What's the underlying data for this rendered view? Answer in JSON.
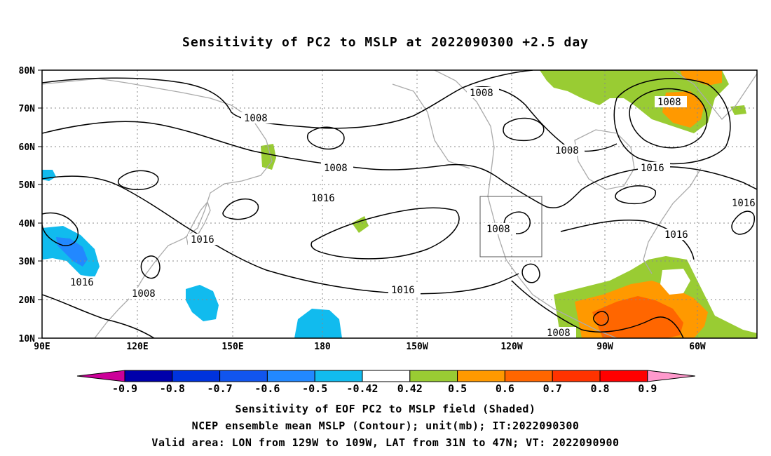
{
  "title": "Sensitivity of PC2 to MSLP at 2022090300 +2.5 day",
  "map": {
    "lon_ticks": [
      "90E",
      "120E",
      "150E",
      "180",
      "150W",
      "120W",
      "90W",
      "60W"
    ],
    "lat_ticks": [
      "80N",
      "70N",
      "60N",
      "50N",
      "40N",
      "30N",
      "20N",
      "10N"
    ],
    "contour_levels": [
      "1008",
      "1016"
    ],
    "valid_box": "129W-109W, 31N-47N"
  },
  "colorbar": {
    "labels": [
      "-0.9",
      "-0.8",
      "-0.7",
      "-0.6",
      "-0.5",
      "-0.42",
      "0.42",
      "0.5",
      "0.6",
      "0.7",
      "0.8",
      "0.9"
    ],
    "colors": [
      "#cc0099",
      "#0000aa",
      "#0033dd",
      "#1155ee",
      "#2288ff",
      "#11bbee",
      "#ffffff",
      "#99cc33",
      "#ff9900",
      "#ff6600",
      "#ff3300",
      "#ff0000",
      "#ff99cc"
    ]
  },
  "captions": {
    "line1": "Sensitivity of EOF PC2 to MSLP field (Shaded)",
    "line2": "NCEP ensemble mean MSLP (Contour); unit(mb); IT:2022090300",
    "line3": "Valid area: LON from 129W to 109W, LAT from 31N to 47N; VT: 2022090900"
  }
}
